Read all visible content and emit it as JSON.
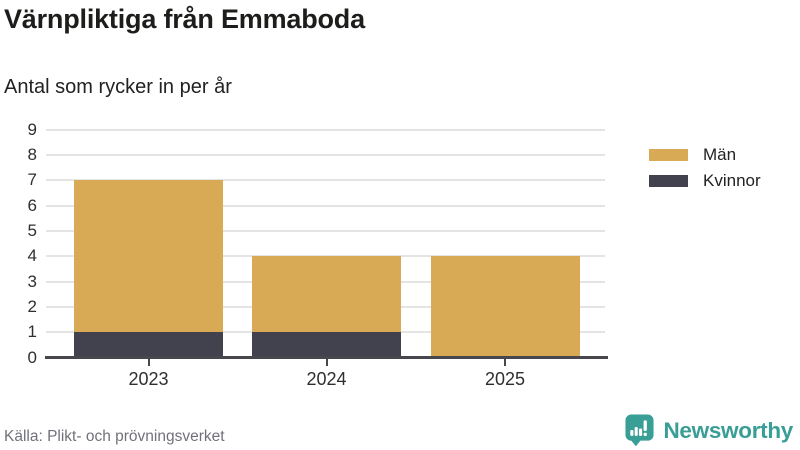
{
  "header": {
    "title": "Värnpliktiga från Emmaboda",
    "subtitle": "Antal som rycker in per år"
  },
  "chart_data": {
    "type": "bar",
    "stacked": true,
    "title": "Värnpliktiga från Emmaboda",
    "subtitle": "Antal som rycker in per år",
    "categories": [
      "2023",
      "2024",
      "2025"
    ],
    "series": [
      {
        "name": "Män",
        "color": "#d9aa55",
        "values": [
          6,
          3,
          4
        ]
      },
      {
        "name": "Kvinnor",
        "color": "#42424e",
        "values": [
          1,
          1,
          0
        ]
      }
    ],
    "stack_order_bottom_to_top": [
      "Kvinnor",
      "Män"
    ],
    "totals": [
      7,
      4,
      4
    ],
    "xlabel": "",
    "ylabel": "",
    "ylim": [
      0,
      9
    ],
    "yticks": [
      0,
      1,
      2,
      3,
      4,
      5,
      6,
      7,
      8,
      9
    ],
    "grid": true,
    "legend_position": "right"
  },
  "footer": {
    "source": "Källa: Plikt- och prövningsverket",
    "brand": "Newsworthy"
  },
  "colors": {
    "men": "#d9aa55",
    "women": "#42424e",
    "grid": "#e4e4e4",
    "axis": "#47474d",
    "text": "#1d1d1b",
    "muted_text": "#71717a",
    "brand_teal": "#399e95"
  }
}
